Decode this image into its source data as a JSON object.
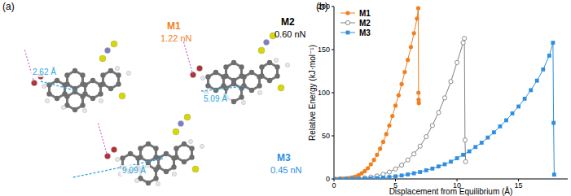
{
  "chart_data": {
    "type": "line",
    "title": "(b)",
    "x_label": "Displacement from Equilibrium (Å)",
    "y_label": "Relative Energy (kJ·mol⁻¹)",
    "xlim": [
      0,
      19
    ],
    "ylim": [
      0,
      200
    ],
    "xticks": [
      0,
      5,
      10,
      15
    ],
    "yticks": [
      0,
      50,
      100,
      150,
      200
    ],
    "grid": false,
    "legend": "top-left",
    "series": [
      {
        "name": "M1",
        "color": "#f07f1e",
        "marker": "circle",
        "line_style": "solid",
        "x": [
          0,
          0.25,
          0.5,
          0.75,
          1,
          1.25,
          1.5,
          1.75,
          2,
          2.25,
          2.5,
          2.75,
          3,
          3.25,
          3.5,
          3.75,
          4,
          4.25,
          4.5,
          4.75,
          5,
          5.25,
          5.5,
          5.75,
          6,
          6.25,
          6.5,
          6.75,
          6.85,
          6.87,
          6.88,
          6.9
        ],
        "values": [
          0,
          0,
          0.1,
          0.3,
          0.6,
          1,
          1.8,
          2.8,
          4.5,
          6.5,
          9,
          12.5,
          17,
          22,
          28,
          35,
          43,
          52,
          62,
          73,
          85,
          97,
          110,
          124,
          138,
          153,
          169,
          186,
          198,
          100,
          92,
          88
        ]
      },
      {
        "name": "M2",
        "color": "#808080",
        "marker": "open_circle",
        "line_style": "solid",
        "x": [
          0,
          0.5,
          1,
          1.5,
          2,
          2.5,
          3,
          3.5,
          4,
          4.5,
          5,
          5.5,
          6,
          6.5,
          7,
          7.5,
          8,
          8.5,
          9,
          9.5,
          10,
          10.5,
          10.6,
          10.65,
          10.7
        ],
        "values": [
          0,
          0,
          0.1,
          0.3,
          0.6,
          1.2,
          2.2,
          3.5,
          5.5,
          8,
          11.5,
          16,
          22,
          29,
          38,
          49,
          62,
          77,
          94,
          113,
          135,
          158,
          163,
          45,
          20
        ]
      },
      {
        "name": "M3",
        "color": "#2e8fe0",
        "marker": "square",
        "line_style": "solid",
        "x": [
          0,
          0.5,
          1,
          1.5,
          2,
          2.5,
          3,
          3.5,
          4,
          4.5,
          5,
          5.5,
          6,
          6.5,
          7,
          7.5,
          8,
          8.5,
          9,
          9.5,
          10,
          10.5,
          11,
          11.5,
          12,
          12.5,
          13,
          13.5,
          14,
          14.5,
          15,
          15.5,
          16,
          16.5,
          17,
          17.5,
          17.8,
          17.85,
          17.9
        ],
        "values": [
          0,
          0,
          0,
          0.1,
          0.2,
          0.4,
          0.6,
          1,
          1.5,
          2.2,
          3,
          4,
          5.2,
          6.5,
          8,
          10,
          12,
          14.5,
          17,
          20,
          24,
          28,
          32,
          37,
          42,
          48,
          54,
          61,
          68,
          76,
          84,
          93,
          103,
          114,
          127,
          143,
          158,
          65,
          5
        ]
      }
    ]
  },
  "panel_a": {
    "label": "(a)",
    "structures": [
      {
        "name": "M1",
        "force": "1.22 nN",
        "distance": "2.62 Å",
        "color": "#f07f1e"
      },
      {
        "name": "M2",
        "force": "0.60 nN",
        "distance": "5.09 Å",
        "color": "#000000"
      },
      {
        "name": "M3",
        "force": "0.45 nN",
        "distance": "9.09 Å",
        "color": "#2e8fe0"
      }
    ]
  }
}
